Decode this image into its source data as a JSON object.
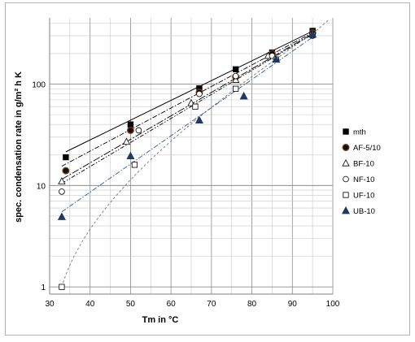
{
  "chart_data": {
    "type": "scatter",
    "title": "",
    "xlabel": "Tm in °C",
    "ylabel": "spec. condensation  rate  in g/m² h K",
    "x_ticks": [
      "30",
      "40",
      "50",
      "60",
      "70",
      "80",
      "90",
      "100"
    ],
    "y_ticks": [
      "1",
      "10",
      "100"
    ],
    "xlim": [
      30,
      100
    ],
    "ylim": [
      0.85,
      450
    ],
    "y_scale": "log",
    "grid": true,
    "legend_position": "right",
    "series": [
      {
        "name": "mth",
        "marker": "filled-square",
        "color": "#000000",
        "points": [
          [
            34,
            19
          ],
          [
            50,
            40
          ],
          [
            67,
            91
          ],
          [
            76,
            140
          ],
          [
            85,
            205
          ],
          [
            95,
            335
          ]
        ],
        "trend": {
          "style": "solid",
          "from": [
            34,
            21.5
          ],
          "to": [
            95,
            333
          ]
        }
      },
      {
        "name": "AF-5/10",
        "marker": "filled-circle",
        "color": "#7a3a10",
        "points": [
          [
            34,
            14
          ],
          [
            50,
            35
          ],
          [
            67,
            83
          ],
          [
            76,
            118
          ],
          [
            85,
            200
          ],
          [
            95,
            320
          ]
        ],
        "trend": {
          "style": "dash-dot",
          "from": [
            33,
            15.5
          ],
          "to": [
            95,
            322
          ]
        }
      },
      {
        "name": "BF-10",
        "marker": "open-triangle",
        "color": "#000000",
        "points": [
          [
            33,
            11
          ],
          [
            49,
            27
          ],
          [
            65,
            65
          ],
          [
            76,
            110
          ],
          [
            84,
            190
          ],
          [
            95,
            310
          ]
        ],
        "trend": {
          "style": "long-dash-dot",
          "from": [
            33,
            11.5
          ],
          "to": [
            95,
            315
          ]
        }
      },
      {
        "name": "NF-10",
        "marker": "open-circle",
        "color": "#000000",
        "points": [
          [
            33,
            8.7
          ],
          [
            52,
            35
          ],
          [
            67,
            80
          ],
          [
            76,
            120
          ],
          [
            85,
            190
          ],
          [
            95,
            300
          ]
        ],
        "trend": {
          "style": "dash-dot-dot",
          "from": [
            33,
            10.5
          ],
          "to": [
            95,
            310
          ]
        }
      },
      {
        "name": "UF-10",
        "marker": "open-square",
        "color": "#000000",
        "points": [
          [
            33,
            1.0
          ],
          [
            51,
            16
          ],
          [
            66,
            60
          ],
          [
            76,
            90
          ],
          [
            86,
            175
          ],
          [
            95,
            305
          ]
        ],
        "trend": {
          "style": "dashed-curve",
          "color": "#777777"
        }
      },
      {
        "name": "UB-10",
        "marker": "filled-triangle",
        "color": "#1f3864",
        "points": [
          [
            33,
            4.9
          ],
          [
            50,
            19.5
          ],
          [
            67,
            44
          ],
          [
            78,
            76
          ],
          [
            86,
            175
          ],
          [
            95,
            310
          ]
        ],
        "trend": {
          "style": "dash-dot",
          "color": "#2e5c9a",
          "from": [
            33,
            5.5
          ],
          "to": [
            95,
            290
          ]
        }
      }
    ]
  }
}
